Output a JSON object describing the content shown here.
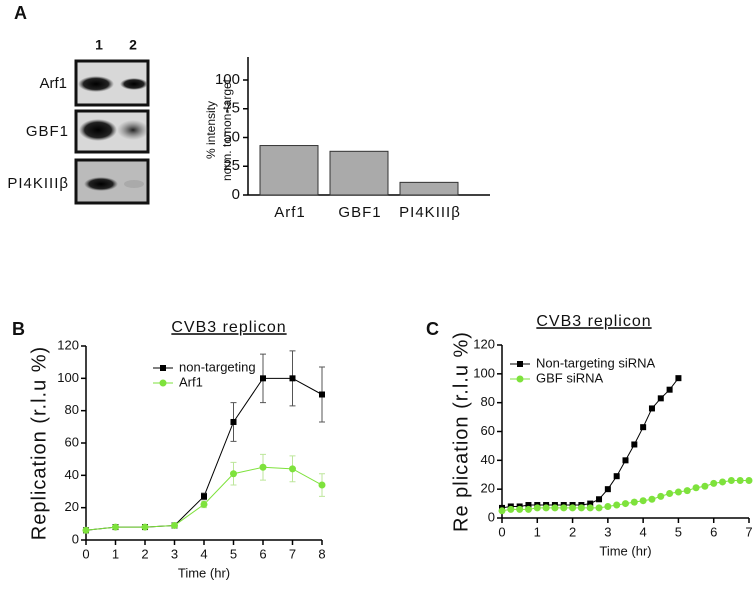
{
  "panels": [
    "A",
    "B",
    "C"
  ],
  "blot": {
    "lanes": [
      "1",
      "2"
    ],
    "rows": [
      "Arf1",
      "GBF1",
      "PI4KIIIβ"
    ]
  },
  "chart_data": [
    {
      "type": "bar",
      "ylabel": [
        "% intensity",
        "norm. to non-target"
      ],
      "categories": [
        "Arf1",
        "GBF1",
        "PI4KIIIβ"
      ],
      "values": [
        43,
        38,
        11
      ],
      "color": "#aaaaaa",
      "ylim": [
        0,
        120
      ],
      "yticks": [
        0,
        25,
        50,
        75,
        100
      ]
    },
    {
      "type": "line",
      "title": "CVB3 replicon",
      "xlabel": "Time (hr)",
      "ylabel": "Replication (r.l.u %)",
      "x": [
        0,
        1,
        2,
        3,
        4,
        5,
        6,
        7,
        8
      ],
      "series": [
        {
          "name": "non-targeting",
          "color": "#000000",
          "values": [
            6,
            8,
            8,
            9,
            27,
            73,
            100,
            100,
            90
          ],
          "errors": [
            1,
            1,
            1,
            1,
            2,
            12,
            15,
            17,
            17
          ]
        },
        {
          "name": "Arf1",
          "color": "#7ee23c",
          "values": [
            6,
            8,
            8,
            9,
            22,
            41,
            45,
            44,
            34
          ],
          "errors": [
            1,
            1,
            1,
            1,
            2,
            7,
            8,
            8,
            7
          ]
        }
      ],
      "xlim": [
        0,
        8
      ],
      "xticks": [
        0,
        1,
        2,
        3,
        4,
        5,
        6,
        7,
        8
      ],
      "ylim": [
        0,
        120
      ],
      "yticks": [
        0,
        20,
        40,
        60,
        80,
        100,
        120
      ]
    },
    {
      "type": "line",
      "title": "CVB3 replicon",
      "xlabel": "Time (hr)",
      "ylabel": "Re plication (r.l.u %)",
      "x": [
        0,
        0.25,
        0.5,
        0.75,
        1,
        1.25,
        1.5,
        1.75,
        2,
        2.25,
        2.5,
        2.75,
        3,
        3.25,
        3.5,
        3.75,
        4,
        4.25,
        4.5,
        4.75,
        5,
        5.25,
        5.5,
        5.75,
        6,
        6.25,
        6.5,
        6.75,
        7
      ],
      "series": [
        {
          "name": "Non-targeting siRNA",
          "color": "#000000",
          "values": [
            7,
            8,
            8,
            9,
            9,
            9,
            9,
            9,
            9,
            9,
            10,
            13,
            20,
            29,
            40,
            51,
            63,
            76,
            83,
            89,
            97,
            null,
            null,
            null,
            null,
            null,
            null,
            null,
            null
          ]
        },
        {
          "name": "GBF siRNA",
          "color": "#7ee23c",
          "values": [
            5,
            6,
            6,
            6,
            7,
            7,
            7,
            7,
            7,
            7,
            7,
            7,
            8,
            9,
            10,
            11,
            12,
            13,
            15,
            17,
            18,
            19,
            21,
            22,
            24,
            25,
            26,
            26,
            26
          ]
        }
      ],
      "xlim": [
        0,
        7
      ],
      "xticks": [
        0,
        1,
        2,
        3,
        4,
        5,
        6,
        7
      ],
      "ylim": [
        0,
        120
      ],
      "yticks": [
        0,
        20,
        40,
        60,
        80,
        100,
        120
      ]
    }
  ]
}
